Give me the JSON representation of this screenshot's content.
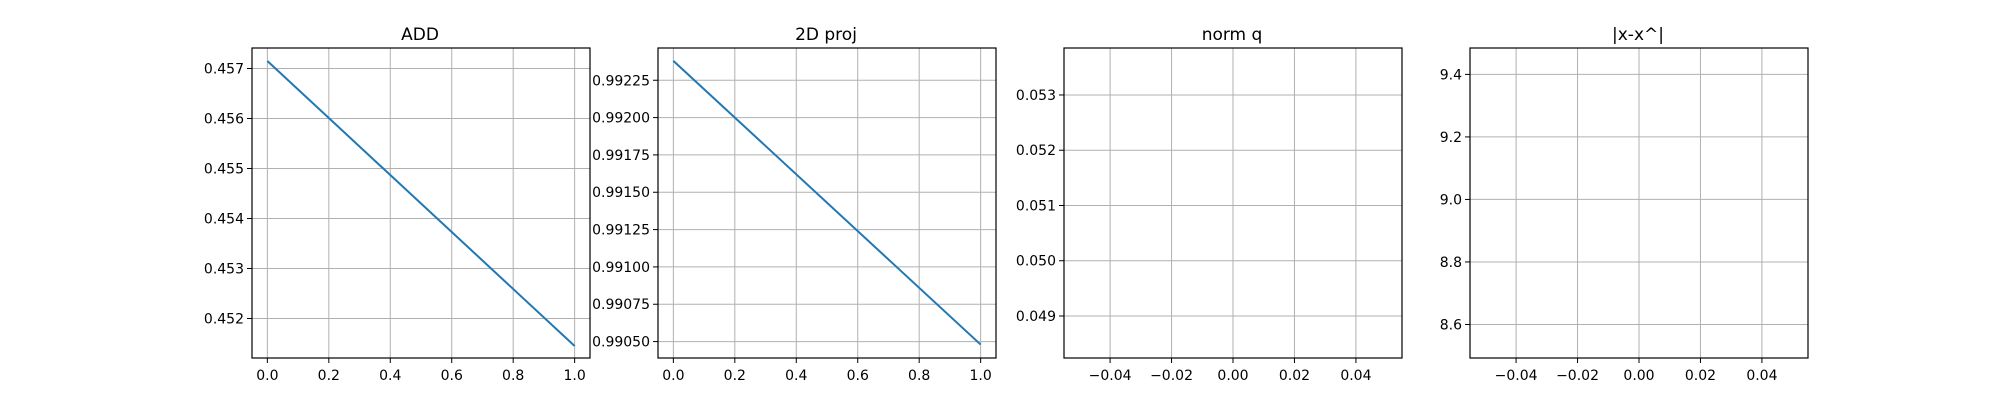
{
  "chart_data": [
    {
      "type": "line",
      "title": "ADD",
      "xlabel": "",
      "ylabel": "",
      "xlim": [
        -0.05,
        1.05
      ],
      "ylim": [
        0.45121,
        0.45741
      ],
      "xticks": [
        0.0,
        0.2,
        0.4,
        0.6,
        0.8,
        1.0
      ],
      "xtick_labels": [
        "0.0",
        "0.2",
        "0.4",
        "0.6",
        "0.8",
        "1.0"
      ],
      "yticks": [
        0.452,
        0.453,
        0.454,
        0.455,
        0.456,
        0.457
      ],
      "ytick_labels": [
        "0.452",
        "0.453",
        "0.454",
        "0.455",
        "0.456",
        "0.457"
      ],
      "grid": true,
      "series": [
        {
          "x": [
            0.0,
            1.0
          ],
          "y": [
            0.45715,
            0.45145
          ],
          "color": "#1f77b4"
        }
      ]
    },
    {
      "type": "line",
      "title": "2D proj",
      "xlabel": "",
      "ylabel": "",
      "xlim": [
        -0.05,
        1.05
      ],
      "ylim": [
        0.99039,
        0.992466
      ],
      "xticks": [
        0.0,
        0.2,
        0.4,
        0.6,
        0.8,
        1.0
      ],
      "xtick_labels": [
        "0.0",
        "0.2",
        "0.4",
        "0.6",
        "0.8",
        "1.0"
      ],
      "yticks": [
        0.9905,
        0.99075,
        0.991,
        0.99125,
        0.9915,
        0.99175,
        0.992,
        0.99225
      ],
      "ytick_labels": [
        "0.99050",
        "0.99075",
        "0.99100",
        "0.99125",
        "0.99150",
        "0.99175",
        "0.99200",
        "0.99225"
      ],
      "grid": true,
      "series": [
        {
          "x": [
            0.0,
            1.0
          ],
          "y": [
            0.99238,
            0.99048
          ],
          "color": "#1f77b4"
        }
      ]
    },
    {
      "type": "line",
      "title": "norm q",
      "xlabel": "",
      "ylabel": "",
      "xlim": [
        -0.055,
        0.055
      ],
      "ylim": [
        0.04824,
        0.05385
      ],
      "xticks": [
        -0.04,
        -0.02,
        0.0,
        0.02,
        0.04
      ],
      "xtick_labels": [
        "−0.04",
        "−0.02",
        "0.00",
        "0.02",
        "0.04"
      ],
      "yticks": [
        0.049,
        0.05,
        0.051,
        0.052,
        0.053
      ],
      "ytick_labels": [
        "0.049",
        "0.050",
        "0.051",
        "0.052",
        "0.053"
      ],
      "grid": true,
      "series": []
    },
    {
      "type": "line",
      "title": "|x-x^|",
      "xlabel": "",
      "ylabel": "",
      "xlim": [
        -0.055,
        0.055
      ],
      "ylim": [
        8.4927,
        9.4845
      ],
      "xticks": [
        -0.04,
        -0.02,
        0.0,
        0.02,
        0.04
      ],
      "xtick_labels": [
        "−0.04",
        "−0.02",
        "0.00",
        "0.02",
        "0.04"
      ],
      "yticks": [
        8.6,
        8.8,
        9.0,
        9.2,
        9.4
      ],
      "ytick_labels": [
        "8.6",
        "8.8",
        "9.0",
        "9.2",
        "9.4"
      ],
      "grid": true,
      "series": []
    }
  ]
}
